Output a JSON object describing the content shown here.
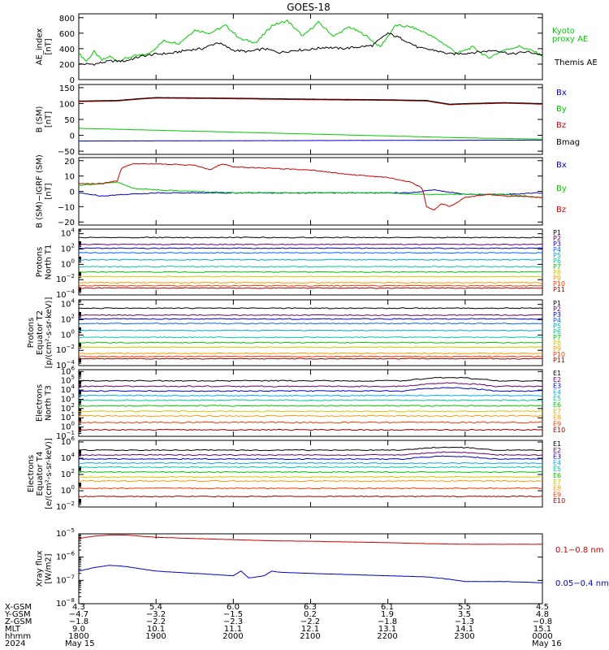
{
  "title": "GOES-18",
  "colors": {
    "black": "#000000",
    "green": "#00cc00",
    "blue": "#0000cc",
    "red": "#cc0000",
    "darkred": "#990000",
    "gray": "#333333"
  },
  "chart_data": [
    {
      "type": "line",
      "id": "ae",
      "ylabel": [
        "AE_index",
        "[nT]"
      ],
      "ylim": [
        0,
        850
      ],
      "yticks": [
        0,
        200,
        400,
        600,
        800
      ],
      "tick_labels": [
        "0",
        "200",
        "400",
        "600",
        "800"
      ],
      "series": [
        {
          "name": "Kyoto proxy AE",
          "color": "#00cc00",
          "legend_lines": [
            "Kyoto",
            "proxy AE"
          ],
          "x": [
            0,
            0.1,
            0.2,
            0.3,
            0.4,
            0.5,
            0.7,
            0.9,
            1.1,
            1.3,
            1.5,
            1.7,
            1.9,
            2.1,
            2.3,
            2.5,
            2.7,
            2.9,
            3.1,
            3.3,
            3.5,
            3.7,
            3.9,
            4.1,
            4.3,
            4.5,
            4.7,
            4.9,
            5.1,
            5.3,
            5.5,
            5.7,
            5.9,
            6.0
          ],
          "values": [
            340,
            240,
            360,
            250,
            300,
            240,
            300,
            330,
            500,
            470,
            640,
            600,
            700,
            520,
            480,
            700,
            760,
            560,
            740,
            560,
            680,
            580,
            420,
            700,
            680,
            600,
            480,
            340,
            420,
            280,
            380,
            430,
            360,
            300
          ]
        },
        {
          "name": "Themis AE",
          "color": "#000000",
          "legend_lines": [
            "Themis AE"
          ],
          "x": [
            0,
            0.2,
            0.4,
            0.6,
            0.8,
            1.0,
            1.2,
            1.4,
            1.6,
            1.8,
            2.0,
            2.2,
            2.4,
            2.6,
            2.8,
            3.0,
            3.2,
            3.4,
            3.6,
            3.8,
            4.0,
            4.2,
            4.4,
            4.6,
            4.8,
            5.0,
            5.2,
            5.4,
            5.6,
            5.8,
            6.0
          ],
          "values": [
            200,
            200,
            240,
            240,
            300,
            330,
            340,
            380,
            400,
            480,
            380,
            360,
            400,
            350,
            380,
            390,
            420,
            400,
            420,
            440,
            600,
            520,
            410,
            380,
            330,
            340,
            360,
            380,
            330,
            360,
            320
          ]
        }
      ]
    },
    {
      "type": "line",
      "id": "bsm",
      "ylabel": [
        "B (SM)",
        "[nT]"
      ],
      "ylim": [
        -60,
        160
      ],
      "yticks": [
        -50,
        0,
        50,
        100,
        150
      ],
      "tick_labels": [
        "−50",
        "0",
        "50",
        "100",
        "150"
      ],
      "series": [
        {
          "name": "Bx",
          "color": "#0000cc",
          "x": [
            0,
            6
          ],
          "values": [
            -18,
            -15
          ]
        },
        {
          "name": "By",
          "color": "#00cc00",
          "x": [
            0,
            1,
            2,
            3,
            4,
            5,
            6
          ],
          "values": [
            22,
            16,
            10,
            4,
            -2,
            -8,
            -12
          ]
        },
        {
          "name": "Bz",
          "color": "#cc0000",
          "x": [
            0,
            0.5,
            0.8,
            1.0,
            1.5,
            2.0,
            3.0,
            4.0,
            4.5,
            4.8,
            5.0,
            5.5,
            6.0
          ],
          "values": [
            106,
            108,
            114,
            117,
            116,
            115,
            112,
            110,
            108,
            96,
            98,
            101,
            98
          ]
        },
        {
          "name": "Bmag",
          "color": "#000000",
          "x": [
            0,
            0.5,
            0.8,
            1.0,
            1.5,
            2.0,
            3.0,
            4.0,
            4.5,
            4.8,
            5.0,
            5.5,
            6.0
          ],
          "values": [
            108,
            110,
            116,
            119,
            118,
            117,
            114,
            112,
            110,
            98,
            100,
            103,
            100
          ]
        }
      ]
    },
    {
      "type": "line",
      "id": "bigrf",
      "ylabel": [
        "B (SM)−IGRF (SM)",
        "[nT]"
      ],
      "ylim": [
        -22,
        22
      ],
      "yticks": [
        -20,
        -10,
        0,
        10,
        20
      ],
      "tick_labels": [
        "−20",
        "−10",
        "0",
        "10",
        "20"
      ],
      "series": [
        {
          "name": "Bx",
          "color": "#0000cc",
          "x": [
            0,
            0.3,
            0.6,
            1.0,
            2.0,
            3.0,
            4.0,
            4.3,
            4.6,
            5.0,
            5.5,
            6.0
          ],
          "values": [
            -1,
            -3,
            -2,
            -1,
            -1,
            -1,
            -1,
            -1,
            1,
            -2,
            -2,
            -1
          ]
        },
        {
          "name": "By",
          "color": "#00cc00",
          "x": [
            0,
            0.3,
            0.5,
            0.7,
            1.0,
            1.5,
            2.0,
            3.0,
            4.0,
            4.5,
            5.0,
            5.5,
            6.0
          ],
          "values": [
            4,
            5,
            6,
            2,
            1,
            0,
            -1,
            -1,
            -1,
            -2,
            -2,
            -2,
            -4
          ]
        },
        {
          "name": "Bz",
          "color": "#cc0000",
          "x": [
            0,
            0.3,
            0.5,
            0.55,
            0.7,
            1.0,
            1.5,
            1.7,
            1.85,
            2.0,
            2.5,
            3.0,
            3.5,
            4.0,
            4.3,
            4.45,
            4.5,
            4.6,
            4.7,
            4.8,
            5.0,
            5.3,
            5.5,
            6.0
          ],
          "values": [
            5,
            5,
            7,
            15,
            18,
            18,
            17,
            14,
            18,
            16,
            15,
            14,
            11,
            9,
            6,
            2,
            -10,
            -12,
            -8,
            -10,
            -4,
            -2,
            -3,
            -4
          ]
        }
      ]
    },
    {
      "type": "line",
      "id": "protons_t1",
      "log": true,
      "ylabel": [
        "Protons",
        "North T1"
      ],
      "ylim_exp": [
        -4,
        4.6
      ],
      "tick_exps": [
        -4,
        -2,
        0,
        2,
        4
      ],
      "series_names": [
        "P1",
        "P2",
        "P3",
        "P4",
        "P5",
        "P6",
        "P7",
        "P8",
        "P9",
        "P10",
        "P11"
      ],
      "series_colors": [
        "#000000",
        "#6a006a",
        "#0000cc",
        "#0066ff",
        "#00aacc",
        "#00c8a0",
        "#00c800",
        "#ccc800",
        "#ff9900",
        "#ff3300",
        "#990000"
      ],
      "levels_exp": [
        3.5,
        2.6,
        2.1,
        1.5,
        0.6,
        -0.3,
        -1.0,
        -1.6,
        -2.4,
        -2.8,
        -3.1
      ]
    },
    {
      "type": "line",
      "id": "protons_t2",
      "log": true,
      "ylabel": [
        "Protons",
        "Equator T2",
        "[p/(cm²-s-sr-keV)]"
      ],
      "ylim_exp": [
        -4,
        4.6
      ],
      "tick_exps": [
        -4,
        -2,
        0,
        2,
        4
      ],
      "series_names": [
        "P1",
        "P2",
        "P3",
        "P4",
        "P5",
        "P6",
        "P7",
        "P8",
        "P9",
        "P10",
        "P11"
      ],
      "series_colors": [
        "#000000",
        "#6a006a",
        "#0000cc",
        "#0066ff",
        "#00aacc",
        "#00c8a0",
        "#00c800",
        "#ccc800",
        "#ff9900",
        "#ff3300",
        "#990000"
      ],
      "levels_exp": [
        3.5,
        2.6,
        2.1,
        1.5,
        0.6,
        -0.3,
        -1.0,
        -1.6,
        -2.4,
        -2.8,
        -3.1
      ]
    },
    {
      "type": "line",
      "id": "electrons_t3",
      "log": true,
      "ylabel": [
        "Electrons",
        "North T3"
      ],
      "ylim_exp": [
        -1,
        6.2
      ],
      "tick_exps": [
        -1,
        0,
        1,
        2,
        3,
        4,
        5,
        6
      ],
      "series_names": [
        "E1",
        "E2",
        "E3",
        "E4",
        "E5",
        "E6",
        "E7",
        "E8",
        "E9",
        "E10"
      ],
      "series_colors": [
        "#000000",
        "#6a006a",
        "#0000cc",
        "#00aaff",
        "#00c8a0",
        "#00c800",
        "#ccc800",
        "#ff9900",
        "#ff3300",
        "#990000"
      ],
      "levels_exp": [
        5.0,
        4.4,
        3.9,
        3.4,
        2.9,
        2.3,
        1.7,
        1.2,
        0.5,
        -0.3
      ]
    },
    {
      "type": "line",
      "id": "electrons_t4",
      "log": true,
      "ylabel": [
        "Electrons",
        "Equator T4",
        "[e/(cm²-s-sr-keV)]"
      ],
      "ylim_exp": [
        -2,
        6.2
      ],
      "tick_exps": [
        -2,
        0,
        2,
        4,
        6
      ],
      "series_names": [
        "E1",
        "E2",
        "E3",
        "E4",
        "E5",
        "E6",
        "E7",
        "E8",
        "E9",
        "E10"
      ],
      "series_colors": [
        "#000000",
        "#6a006a",
        "#0000cc",
        "#00aaff",
        "#00c8a0",
        "#00c800",
        "#ccc800",
        "#ff9900",
        "#ff3300",
        "#990000"
      ],
      "levels_exp": [
        5.0,
        4.4,
        3.9,
        3.4,
        2.9,
        2.3,
        1.7,
        1.2,
        0.3,
        -0.7
      ]
    },
    {
      "type": "line",
      "id": "xray",
      "log": true,
      "ylabel": [
        "Xray flux",
        "[W/m2]"
      ],
      "ylim_exp": [
        -8,
        -5
      ],
      "tick_exps": [
        -8,
        -7,
        -6,
        -5
      ],
      "series": [
        {
          "name": "0.1−0.8 nm",
          "color": "#cc0000",
          "x": [
            0,
            0.2,
            0.4,
            0.6,
            0.8,
            1.0,
            1.5,
            2.0,
            2.5,
            3.0,
            3.5,
            4.0,
            4.5,
            5.0,
            5.5,
            6.0
          ],
          "values": [
            -5.2,
            -5.1,
            -5.05,
            -5.05,
            -5.1,
            -5.15,
            -5.2,
            -5.25,
            -5.3,
            -5.32,
            -5.35,
            -5.38,
            -5.42,
            -5.45,
            -5.45,
            -5.45
          ]
        },
        {
          "name": "0.05−0.4 nm",
          "color": "#0000cc",
          "x": [
            0,
            0.2,
            0.4,
            0.6,
            0.8,
            1.0,
            1.5,
            2.0,
            2.1,
            2.2,
            2.4,
            2.5,
            2.6,
            3.0,
            3.5,
            4.0,
            4.5,
            4.8,
            5.0,
            5.5,
            6.0
          ],
          "values": [
            -6.6,
            -6.45,
            -6.35,
            -6.4,
            -6.5,
            -6.6,
            -6.7,
            -6.8,
            -6.6,
            -6.9,
            -6.8,
            -6.6,
            -6.65,
            -6.7,
            -6.75,
            -6.8,
            -6.85,
            -6.95,
            -7.05,
            -7.05,
            -7.1
          ]
        }
      ]
    }
  ],
  "xaxis": {
    "row_labels": [
      "X-GSM",
      "Y-GSM",
      "Z-GSM",
      "MLT",
      "hhmm",
      "2024"
    ],
    "columns": [
      [
        "4.3",
        "−4.7",
        "−1.8",
        "9.0",
        "1800",
        "May 15"
      ],
      [
        "5.4",
        "−3.2",
        "−2.2",
        "10.1",
        "1900",
        ""
      ],
      [
        "6.0",
        "−1.5",
        "−2.3",
        "11.1",
        "2000",
        ""
      ],
      [
        "6.3",
        "0.2",
        "−2.2",
        "12.1",
        "2100",
        ""
      ],
      [
        "6.1",
        "1.9",
        "−1.8",
        "13.1",
        "2200",
        ""
      ],
      [
        "5.5",
        "3.5",
        "−1.3",
        "14.1",
        "2300",
        ""
      ],
      [
        "4.5",
        "4.8",
        "−0.8",
        "15.1",
        "0000",
        "May 16"
      ]
    ]
  }
}
